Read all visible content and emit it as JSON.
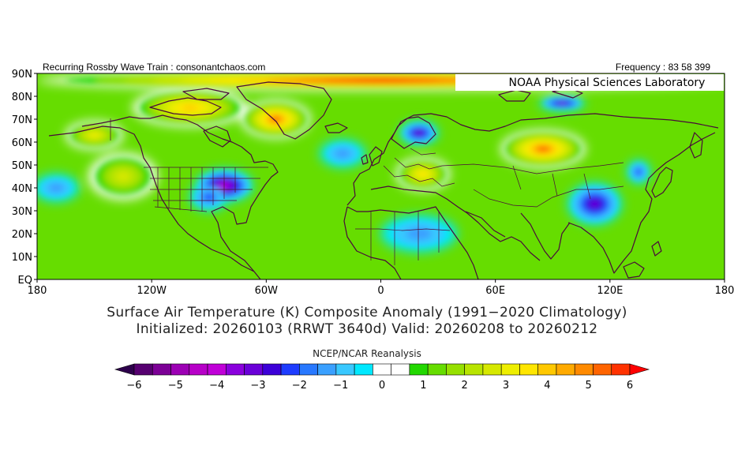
{
  "header": {
    "left": "Recurring Rossby Wave Train : consonantchaos.com",
    "right": "Frequency : 83 58 399"
  },
  "inset_label": "NOAA Physical Sciences Laboratory",
  "title_line1": "Surface Air Temperature (K) Composite Anomaly (1991−2020 Climatology)",
  "title_line2": "Initialized: 20260103 (RRWT 3640d) Valid: 20260208 to 20260212",
  "colorbar": {
    "title": "NCEP/NCAR Reanalysis",
    "tick_labels": [
      "−6",
      "−5",
      "−4",
      "−3",
      "−2",
      "−1",
      "0",
      "1",
      "2",
      "3",
      "4",
      "5",
      "6"
    ],
    "min": -6,
    "max": 6,
    "step": 0.5,
    "colors": [
      "#2d004b",
      "#560070",
      "#7c0096",
      "#9c00b4",
      "#b700c8",
      "#c000d8",
      "#8a00dd",
      "#6a00d8",
      "#3c00d8",
      "#1e3cff",
      "#2878ff",
      "#3aa0ff",
      "#39c8ff",
      "#00e8ff",
      "#ffffff",
      "#ffffff",
      "#22d800",
      "#66dd00",
      "#96e000",
      "#b8e400",
      "#d6e800",
      "#eeee00",
      "#ffe600",
      "#ffc800",
      "#ffaa00",
      "#ff8a00",
      "#ff6400",
      "#ff3200",
      "#ff0000"
    ]
  },
  "map": {
    "lat_labels": [
      "90N",
      "80N",
      "70N",
      "60N",
      "50N",
      "40N",
      "30N",
      "20N",
      "10N",
      "EQ"
    ],
    "lon_labels": [
      "180",
      "120W",
      "60W",
      "0",
      "60E",
      "120E",
      "180"
    ],
    "lat_values": [
      90,
      80,
      70,
      60,
      50,
      40,
      30,
      20,
      10,
      0
    ],
    "lon_values": [
      -180,
      -120,
      -60,
      0,
      60,
      120,
      180
    ],
    "extent": {
      "lon": [
        -180,
        180
      ],
      "lat": [
        0,
        90
      ]
    }
  },
  "anomaly_regions": [
    {
      "name": "arctic-ocean-warm",
      "lon": 0,
      "lat": 87,
      "rx": 180,
      "ry": 4,
      "value": 6
    },
    {
      "name": "greenland-warm",
      "lon": -55,
      "lat": 70,
      "rx": 18,
      "ry": 8,
      "value": 5
    },
    {
      "name": "canada-arctic-warm",
      "lon": -100,
      "lat": 75,
      "rx": 30,
      "ry": 8,
      "value": 4
    },
    {
      "name": "alaska-warm",
      "lon": -150,
      "lat": 63,
      "rx": 15,
      "ry": 6,
      "value": 3
    },
    {
      "name": "pacific-northeast-warm",
      "lon": -135,
      "lat": 45,
      "rx": 18,
      "ry": 10,
      "value": 2.5
    },
    {
      "name": "eastern-us-cold",
      "lon": -82,
      "lat": 41,
      "rx": 15,
      "ry": 7,
      "value": -4
    },
    {
      "name": "us-central-cool",
      "lon": -90,
      "lat": 36,
      "rx": 10,
      "ry": 6,
      "value": -2
    },
    {
      "name": "scandinavia-cold",
      "lon": 20,
      "lat": 64,
      "rx": 10,
      "ry": 5,
      "value": -3
    },
    {
      "name": "europe-warm",
      "lon": 22,
      "lat": 46,
      "rx": 14,
      "ry": 7,
      "value": 3.5
    },
    {
      "name": "siberia-warm",
      "lon": 85,
      "lat": 57,
      "rx": 22,
      "ry": 8,
      "value": 5
    },
    {
      "name": "east-asia-cold",
      "lon": 112,
      "lat": 33,
      "rx": 14,
      "ry": 9,
      "value": -3
    },
    {
      "name": "japan-cool",
      "lon": 135,
      "lat": 47,
      "rx": 6,
      "ry": 5,
      "value": -2
    },
    {
      "name": "arctic-siberia-cold",
      "lon": 95,
      "lat": 77,
      "rx": 12,
      "ry": 3,
      "value": -3
    },
    {
      "name": "north-atlantic-cool",
      "lon": -20,
      "lat": 55,
      "rx": 12,
      "ry": 6,
      "value": -1.5
    },
    {
      "name": "africa-cool",
      "lon": 20,
      "lat": 20,
      "rx": 20,
      "ry": 8,
      "value": -1.5
    },
    {
      "name": "pacific-west-cool",
      "lon": -170,
      "lat": 40,
      "rx": 12,
      "ry": 6,
      "value": -1.5
    }
  ]
}
